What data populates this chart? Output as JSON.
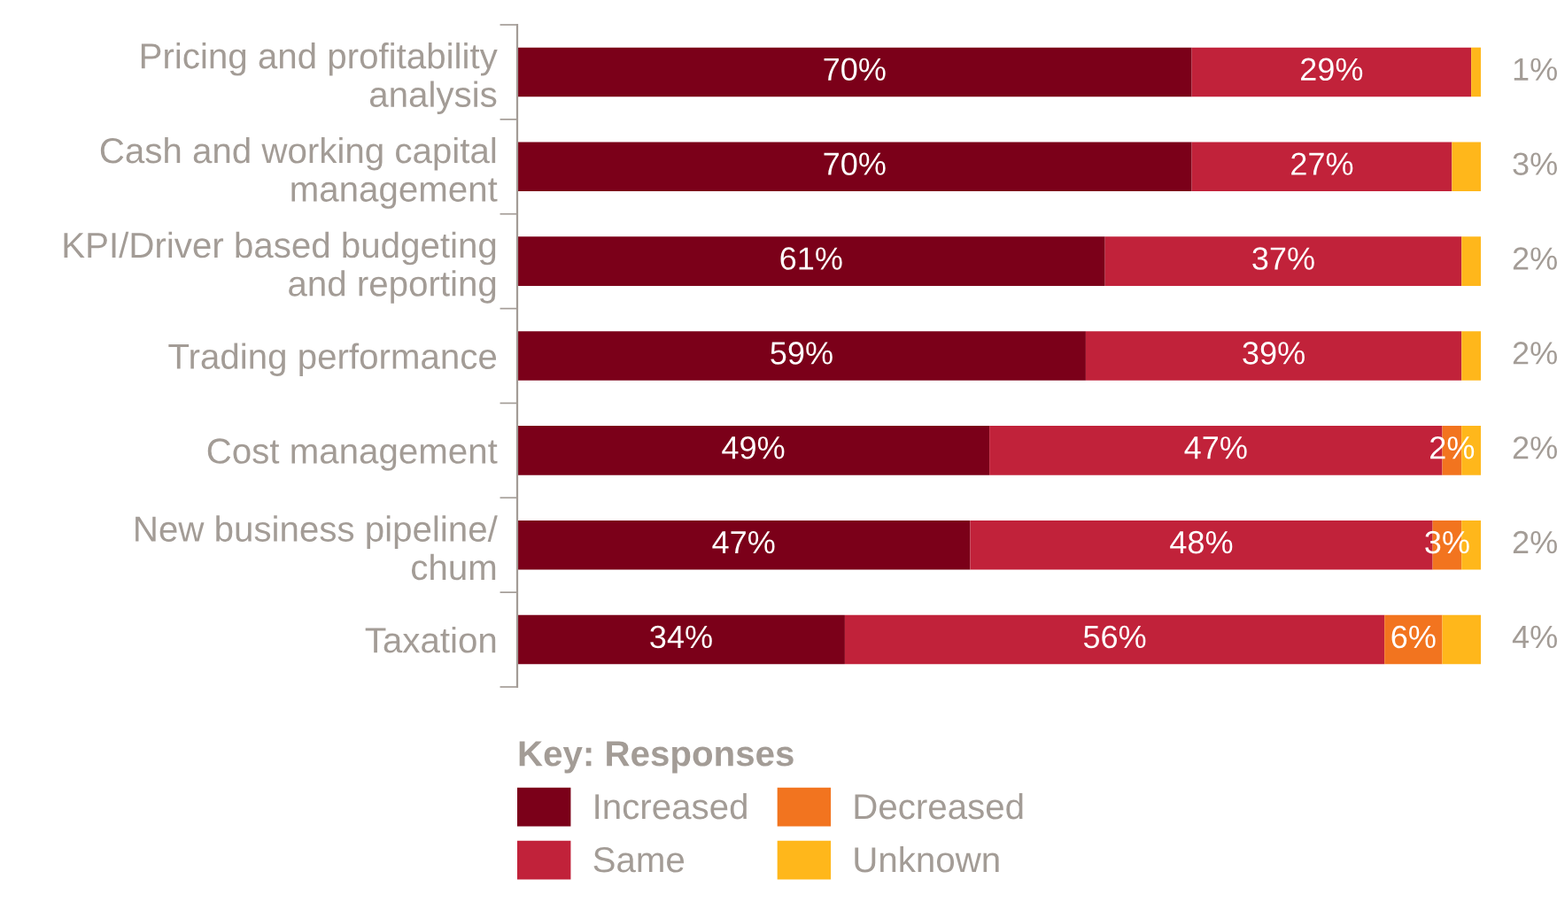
{
  "chart_data": {
    "type": "bar",
    "orientation": "horizontal",
    "stacked": true,
    "legend": "bottom left",
    "legend_title": "Key: Responses",
    "categories": [
      "Pricing and profitability\nanalysis",
      "Cash and working capital\nmanagement",
      "KPI/Driver based budgeting\nand reporting",
      "Trading performance",
      "Cost management",
      "New business pipeline/\nchum",
      "Taxation"
    ],
    "series": [
      {
        "name": "Increased",
        "color": "#7b0019",
        "values": [
          70,
          70,
          61,
          59,
          49,
          47,
          34
        ],
        "value_labels": [
          "70%",
          "70%",
          "61%",
          "59%",
          "49%",
          "47%",
          "34%"
        ]
      },
      {
        "name": "Same",
        "color": "#c1223a",
        "values": [
          29,
          27,
          37,
          39,
          47,
          48,
          56
        ],
        "value_labels": [
          "29%",
          "27%",
          "37%",
          "39%",
          "47%",
          "48%",
          "56%"
        ]
      },
      {
        "name": "Decreased",
        "color": "#f2741f",
        "values": [
          null,
          null,
          null,
          null,
          2,
          3,
          6
        ],
        "value_labels": [
          null,
          null,
          null,
          null,
          "2%",
          "3%",
          "6%"
        ]
      },
      {
        "name": "Unknown",
        "color": "#ffb71b",
        "values": [
          1,
          3,
          2,
          2,
          2,
          2,
          4
        ],
        "value_labels": [
          "1%",
          "3%",
          "2%",
          "2%",
          "2%",
          "2%",
          "4%"
        ]
      }
    ]
  }
}
